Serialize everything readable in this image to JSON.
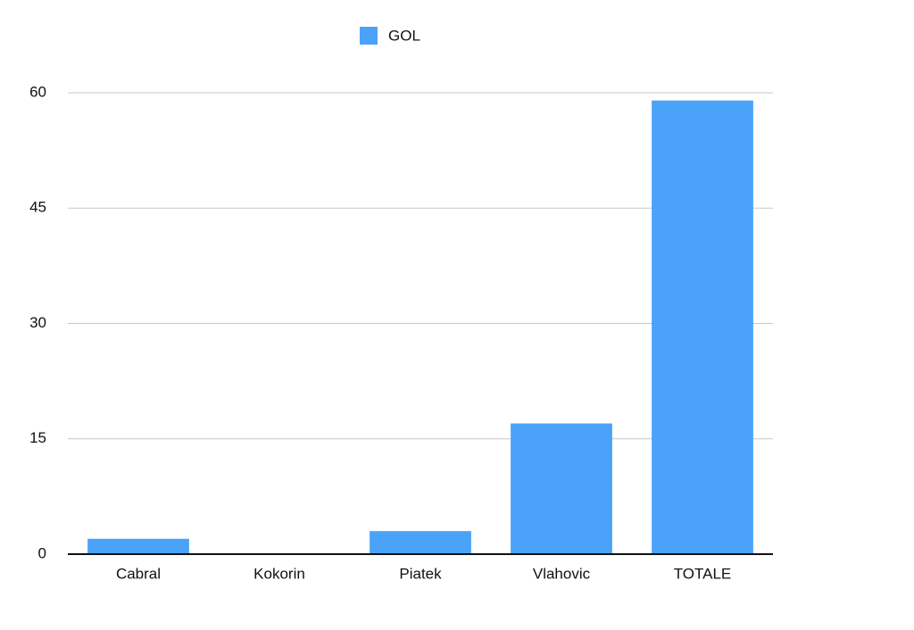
{
  "chart_data": {
    "type": "bar",
    "categories": [
      "Cabral",
      "Kokorin",
      "Piatek",
      "Vlahovic",
      "TOTALE"
    ],
    "series": [
      {
        "name": "GOL",
        "color": "#4aa3f8",
        "values": [
          2,
          0,
          3,
          17,
          59
        ]
      }
    ],
    "ylim": [
      0,
      60
    ],
    "yticks": [
      0,
      15,
      30,
      45,
      60
    ],
    "grid": true,
    "legend": "top"
  }
}
